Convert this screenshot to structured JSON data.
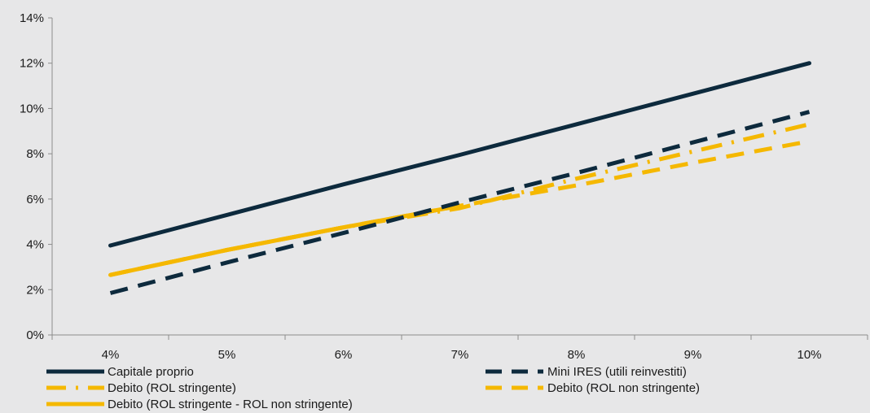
{
  "chart_data": {
    "type": "line",
    "title": "",
    "xlabel": "",
    "ylabel": "",
    "x": [
      4,
      5,
      6,
      7,
      8,
      9,
      10
    ],
    "x_tick_labels": [
      "4%",
      "5%",
      "6%",
      "7%",
      "8%",
      "9%",
      "10%"
    ],
    "y_tick_labels": [
      "0%",
      "2%",
      "4%",
      "6%",
      "8%",
      "10%",
      "12%",
      "14%"
    ],
    "xlim": [
      3.5,
      10.5
    ],
    "ylim": [
      0,
      14
    ],
    "grid": false,
    "legend_position": "bottom",
    "series": [
      {
        "name": "Capitale proprio",
        "values": [
          3.95,
          5.3,
          6.65,
          7.95,
          9.3,
          10.65,
          12.0
        ],
        "color": "#0d2a3d",
        "style": "solid"
      },
      {
        "name": "Mini IRES (utili reinvestiti)",
        "values": [
          1.85,
          3.2,
          4.5,
          5.85,
          7.15,
          8.5,
          9.85
        ],
        "color": "#0d2a3d",
        "style": "dashed"
      },
      {
        "name": "Debito (ROL stringente)",
        "values": [
          2.65,
          3.75,
          4.75,
          5.6,
          6.9,
          8.1,
          9.3
        ],
        "color": "#f5b800",
        "style": "dashdot"
      },
      {
        "name": "Debito (ROL non stringente)",
        "values": [
          2.65,
          3.75,
          4.75,
          5.7,
          6.6,
          7.6,
          8.55
        ],
        "color": "#f5b800",
        "style": "dashed"
      },
      {
        "name": "Debito (ROL stringente - ROL non stringente)",
        "values": [
          2.65,
          3.75,
          4.75,
          5.7,
          null,
          null,
          null
        ],
        "color": "#f5b800",
        "style": "solid"
      }
    ]
  }
}
